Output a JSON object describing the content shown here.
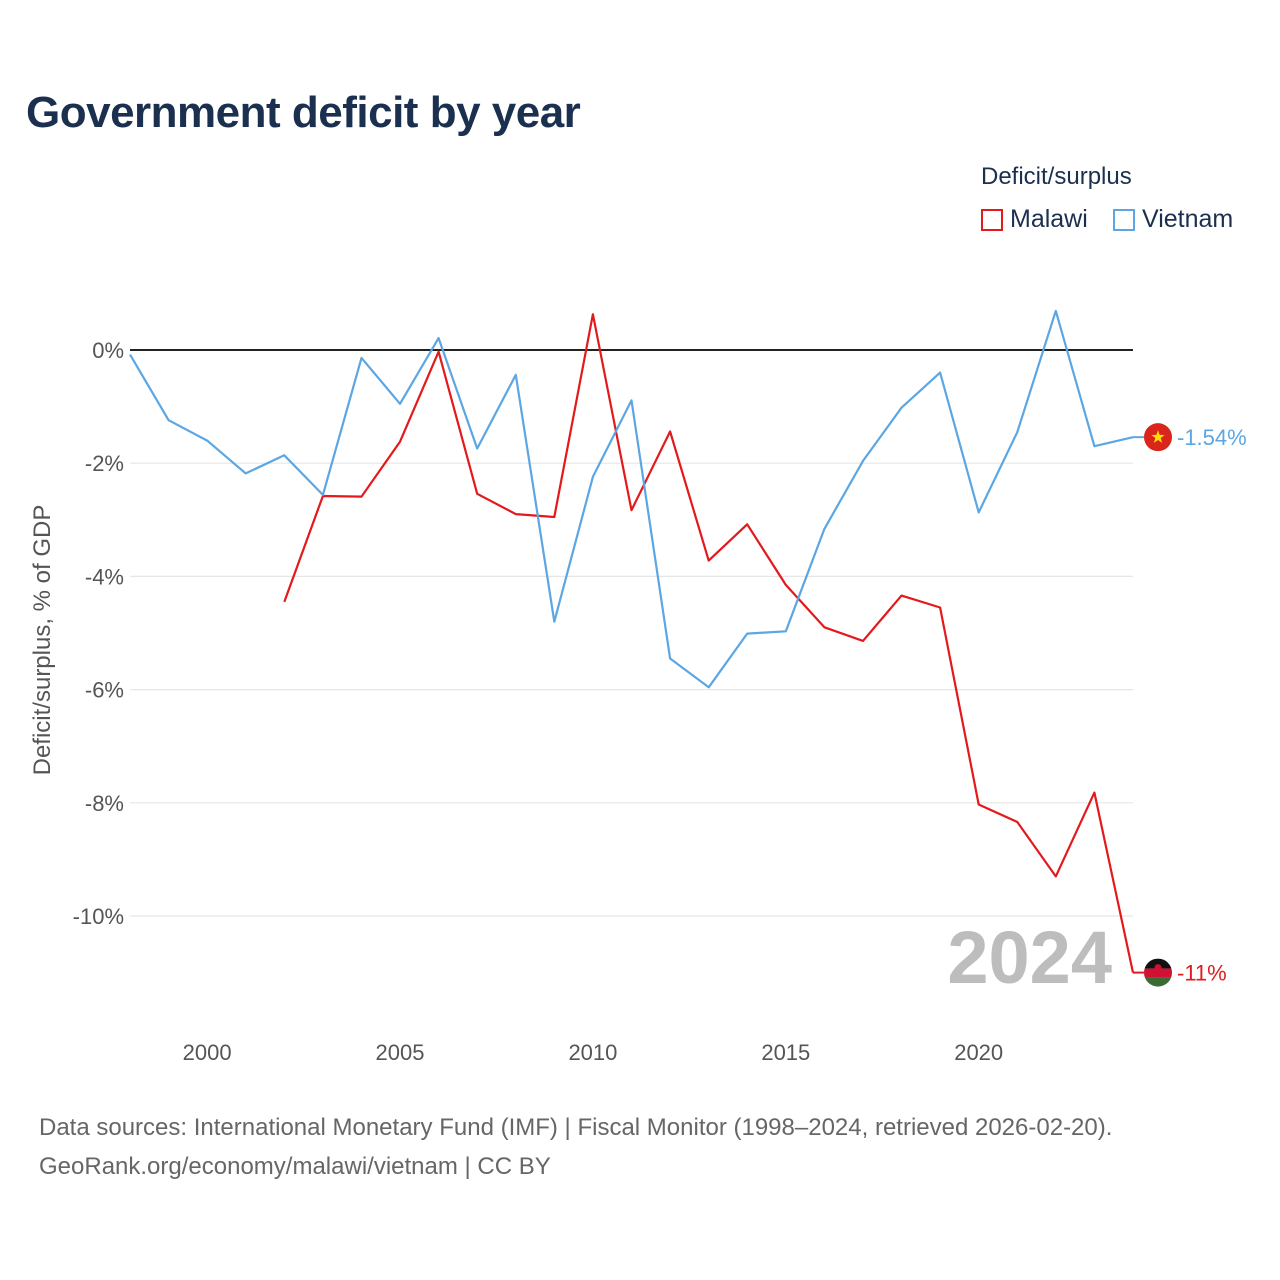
{
  "title": "Government deficit by year",
  "legend": {
    "title": "Deficit/surplus",
    "items": [
      {
        "name": "Malawi",
        "color": "#e3191c"
      },
      {
        "name": "Vietnam",
        "color": "#5ba6e3"
      }
    ]
  },
  "source": {
    "line1": "Data sources: International Monetary Fund (IMF) | Fiscal Monitor (1998–2024, retrieved 2026-02-20).",
    "line2": "GeoRank.org/economy/malawi/vietnam | CC BY"
  },
  "chart_data": {
    "type": "line",
    "title": "Government deficit by year",
    "xlabel": "",
    "ylabel": "Deficit/surplus, % of GDP",
    "xlim": [
      1998,
      2024
    ],
    "ylim": [
      -11.8,
      1.2
    ],
    "x_ticks": [
      2000,
      2005,
      2010,
      2015,
      2020
    ],
    "x_tick_labels": [
      "2000",
      "2005",
      "2010",
      "2015",
      "2020"
    ],
    "y_ticks": [
      0,
      -2,
      -4,
      -6,
      -8,
      -10
    ],
    "y_tick_labels": [
      "0%",
      "-2%",
      "-4%",
      "-6%",
      "-8%",
      "-10%"
    ],
    "year_watermark": "2024",
    "series": [
      {
        "name": "Malawi",
        "color": "#e3191c",
        "end_label": "-11%",
        "x": [
          2002,
          2003,
          2004,
          2005,
          2006,
          2007,
          2008,
          2009,
          2010,
          2011,
          2012,
          2013,
          2014,
          2015,
          2016,
          2017,
          2018,
          2019,
          2020,
          2021,
          2022,
          2023,
          2024
        ],
        "values": [
          -4.45,
          -2.58,
          -2.59,
          -1.62,
          -0.03,
          -2.54,
          -2.9,
          -2.95,
          0.63,
          -2.83,
          -1.44,
          -3.72,
          -3.08,
          -4.15,
          -4.9,
          -5.14,
          -4.34,
          -4.55,
          -8.03,
          -8.34,
          -9.3,
          -7.82,
          -11.0
        ]
      },
      {
        "name": "Vietnam",
        "color": "#5ba6e3",
        "end_label": "-1.54%",
        "x": [
          1998,
          1999,
          2000,
          2001,
          2002,
          2003,
          2004,
          2005,
          2006,
          2007,
          2008,
          2009,
          2010,
          2011,
          2012,
          2013,
          2014,
          2015,
          2016,
          2017,
          2018,
          2019,
          2020,
          2021,
          2022,
          2023,
          2024
        ],
        "values": [
          -0.08,
          -1.24,
          -1.6,
          -2.18,
          -1.86,
          -2.56,
          -0.14,
          -0.95,
          0.21,
          -1.74,
          -0.44,
          -4.8,
          -2.24,
          -0.89,
          -5.45,
          -5.96,
          -5.01,
          -4.97,
          -3.16,
          -1.96,
          -1.02,
          -0.4,
          -2.87,
          -1.45,
          0.69,
          -1.7,
          -1.54
        ]
      }
    ]
  }
}
